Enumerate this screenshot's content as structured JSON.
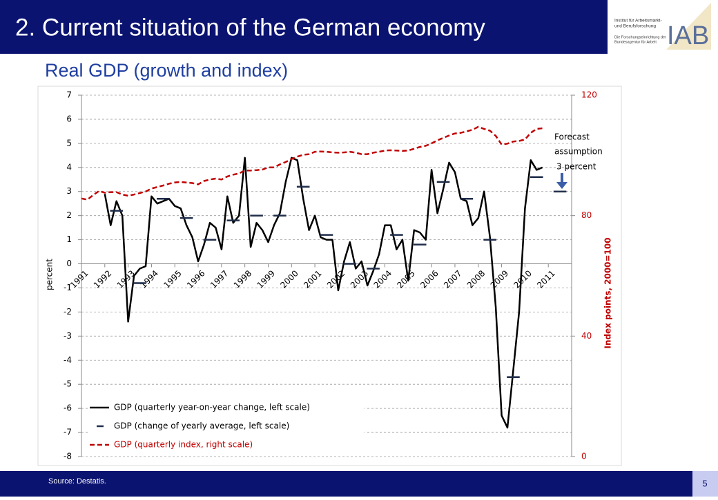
{
  "header": {
    "title": "2. Current situation of the German economy",
    "subtitle": "Real GDP (growth and index)",
    "logo": {
      "line1": "Institut für Arbeitsmarkt-",
      "line2": "und Berufsforschung",
      "line3": "Die Forschungseinrichtung der",
      "line4": "Bundesagentur für Arbeit",
      "name": "IAB"
    }
  },
  "footer": {
    "source": "Source: Destatis.",
    "page": 5
  },
  "chart_data": {
    "type": "line",
    "ylabel": "percent",
    "y2label": "Index points, 2000=100",
    "annotations": [
      "Forecast",
      "assumption",
      "3 percent"
    ],
    "categories": [
      "1991",
      null,
      null,
      null,
      "1992",
      null,
      null,
      null,
      "1993",
      null,
      null,
      null,
      "1994",
      null,
      null,
      null,
      "1995",
      null,
      null,
      null,
      "1996",
      null,
      null,
      null,
      "1997",
      null,
      null,
      null,
      "1998",
      null,
      null,
      null,
      "1999",
      null,
      null,
      null,
      "2000",
      null,
      null,
      null,
      "2001",
      null,
      null,
      null,
      "2002",
      null,
      null,
      null,
      "2003",
      null,
      null,
      null,
      "2004",
      null,
      null,
      null,
      "2005",
      null,
      null,
      null,
      "2006",
      null,
      null,
      null,
      "2007",
      null,
      null,
      null,
      "2008",
      null,
      null,
      null,
      "2009",
      null,
      null,
      null,
      "2010",
      null,
      null,
      null,
      "2011",
      null,
      null,
      null
    ],
    "series": [
      {
        "name": "GDP (quarterly year-on-year change, left scale)",
        "color": "#000000",
        "style": "solid",
        "values": [
          null,
          null,
          null,
          null,
          2.9,
          1.6,
          2.6,
          2.0,
          -2.4,
          -0.5,
          -0.2,
          -0.1,
          2.8,
          2.5,
          2.6,
          2.7,
          2.4,
          2.3,
          1.6,
          1.1,
          0.1,
          0.8,
          1.7,
          1.5,
          0.6,
          2.8,
          1.7,
          2.0,
          4.4,
          0.7,
          1.7,
          1.4,
          0.9,
          1.6,
          2.1,
          3.4,
          4.4,
          4.3,
          2.7,
          1.4,
          2.0,
          1.1,
          1.0,
          1.0,
          -1.1,
          0.1,
          0.9,
          -0.2,
          0.1,
          -0.9,
          -0.3,
          0.4,
          1.6,
          1.6,
          0.6,
          1.0,
          -0.7,
          1.4,
          1.3,
          1.0,
          3.9,
          2.1,
          3.1,
          4.2,
          3.8,
          2.7,
          2.6,
          1.6,
          1.9,
          3.0,
          1.1,
          -1.8,
          -6.3,
          -6.8,
          -4.4,
          -2.0,
          2.3,
          4.3,
          3.9,
          4.0,
          null,
          null,
          null,
          null
        ]
      },
      {
        "name": "GDP (change of yearly average, left scale)",
        "color": "#1f2d4a",
        "style": "step",
        "values": [
          null,
          null,
          null,
          null,
          2.2,
          null,
          null,
          null,
          -0.8,
          null,
          null,
          null,
          2.7,
          null,
          null,
          null,
          1.9,
          null,
          null,
          null,
          1.0,
          null,
          null,
          null,
          1.8,
          null,
          null,
          null,
          2.0,
          null,
          null,
          null,
          2.0,
          null,
          null,
          null,
          3.2,
          null,
          null,
          null,
          1.2,
          null,
          null,
          null,
          0.0,
          null,
          null,
          null,
          -0.2,
          null,
          null,
          null,
          1.2,
          null,
          null,
          null,
          0.8,
          null,
          null,
          null,
          3.4,
          null,
          null,
          null,
          2.7,
          null,
          null,
          null,
          1.0,
          null,
          null,
          null,
          -4.7,
          null,
          null,
          null,
          3.6,
          null,
          null,
          null,
          3.0,
          null,
          null,
          null
        ]
      },
      {
        "name": "GDP (quarterly index, right scale)",
        "color": "#c00000",
        "style": "dashed",
        "axis": "y2",
        "values": [
          85.7,
          85.3,
          86.8,
          88.2,
          87.6,
          87.8,
          87.8,
          87.0,
          86.6,
          87.0,
          87.5,
          88.0,
          89.0,
          89.5,
          90.0,
          90.6,
          91.0,
          91.2,
          91.0,
          90.8,
          90.4,
          91.5,
          92.0,
          92.3,
          92.0,
          93.0,
          93.6,
          94.0,
          95.0,
          95.0,
          95.1,
          95.3,
          96.0,
          96.0,
          97.0,
          97.8,
          98.8,
          99.6,
          100.2,
          100.4,
          101.2,
          101.3,
          101.2,
          101.0,
          100.9,
          101.0,
          101.2,
          100.9,
          100.4,
          100.4,
          100.9,
          101.2,
          101.6,
          101.7,
          101.6,
          101.5,
          101.6,
          102.2,
          102.8,
          103.2,
          104.0,
          105.0,
          105.8,
          106.6,
          107.3,
          107.5,
          108.0,
          108.5,
          109.5,
          108.8,
          108.2,
          106.5,
          103.6,
          103.9,
          104.6,
          104.8,
          105.3,
          107.5,
          108.8,
          109.0,
          null,
          null,
          null,
          null
        ]
      }
    ],
    "ylim": [
      -8,
      7
    ],
    "yticks": [
      -8,
      -7,
      -6,
      -5,
      -4,
      -3,
      -2,
      -1,
      0,
      1,
      2,
      3,
      4,
      5,
      6,
      7
    ],
    "y2lim": [
      0,
      120
    ],
    "y2ticks": [
      0,
      40,
      80,
      120
    ],
    "y2color": "#c00000",
    "grid": true,
    "legend": "lower left"
  }
}
